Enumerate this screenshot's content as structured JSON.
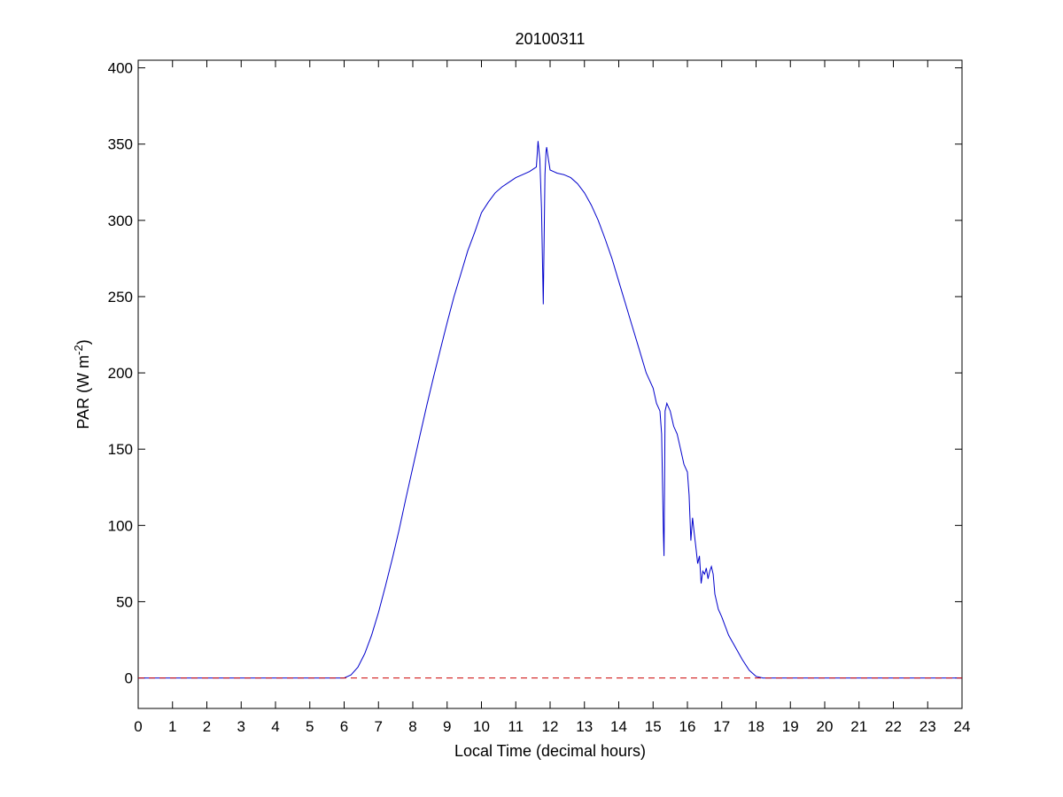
{
  "chart_data": {
    "type": "line",
    "title": "20100311",
    "xlabel": "Local Time (decimal hours)",
    "ylabel_main": "PAR (W m",
    "ylabel_sup": "-2",
    "ylabel_close": ")",
    "xlim": [
      0,
      24
    ],
    "ylim": [
      -20,
      405
    ],
    "xticks": [
      0,
      1,
      2,
      3,
      4,
      5,
      6,
      7,
      8,
      9,
      10,
      11,
      12,
      13,
      14,
      15,
      16,
      17,
      18,
      19,
      20,
      21,
      22,
      23,
      24
    ],
    "yticks": [
      0,
      50,
      100,
      150,
      200,
      250,
      300,
      350,
      400
    ],
    "grid": false,
    "series": [
      {
        "color": "#0000cc",
        "style": "solid",
        "x": [
          0,
          6.0,
          6.2,
          6.4,
          6.6,
          6.8,
          7.0,
          7.2,
          7.4,
          7.6,
          7.8,
          8.0,
          8.2,
          8.4,
          8.6,
          8.8,
          9.0,
          9.2,
          9.4,
          9.6,
          9.8,
          10.0,
          10.2,
          10.4,
          10.6,
          10.8,
          11.0,
          11.2,
          11.4,
          11.6,
          11.65,
          11.7,
          11.75,
          11.8,
          11.85,
          11.88,
          11.9,
          11.95,
          12.0,
          12.1,
          12.2,
          12.4,
          12.6,
          12.8,
          13.0,
          13.2,
          13.4,
          13.6,
          13.8,
          14.0,
          14.2,
          14.4,
          14.6,
          14.8,
          15.0,
          15.1,
          15.2,
          15.25,
          15.3,
          15.32,
          15.35,
          15.4,
          15.5,
          15.6,
          15.7,
          15.8,
          15.9,
          16.0,
          16.05,
          16.1,
          16.15,
          16.2,
          16.25,
          16.3,
          16.35,
          16.4,
          16.45,
          16.5,
          16.55,
          16.6,
          16.65,
          16.7,
          16.75,
          16.8,
          16.9,
          17.0,
          17.2,
          17.4,
          17.6,
          17.8,
          18.0,
          18.2,
          18.4,
          24
        ],
        "y": [
          0,
          0,
          2,
          7,
          16,
          28,
          43,
          60,
          78,
          97,
          118,
          138,
          158,
          178,
          197,
          215,
          233,
          250,
          265,
          280,
          292,
          305,
          312,
          318,
          322,
          325,
          328,
          330,
          332,
          335,
          352,
          340,
          308,
          245,
          330,
          345,
          348,
          340,
          333,
          332,
          331,
          330,
          328,
          324,
          318,
          310,
          300,
          288,
          275,
          260,
          245,
          230,
          215,
          200,
          190,
          180,
          175,
          160,
          95,
          80,
          175,
          180,
          175,
          165,
          160,
          150,
          140,
          135,
          120,
          90,
          105,
          95,
          85,
          75,
          80,
          62,
          70,
          68,
          72,
          65,
          70,
          73,
          68,
          55,
          45,
          40,
          28,
          20,
          12,
          5,
          1,
          0,
          0,
          0
        ]
      },
      {
        "color": "#cc0000",
        "style": "dashed",
        "x": [
          0,
          24
        ],
        "y": [
          0,
          0
        ]
      }
    ]
  }
}
